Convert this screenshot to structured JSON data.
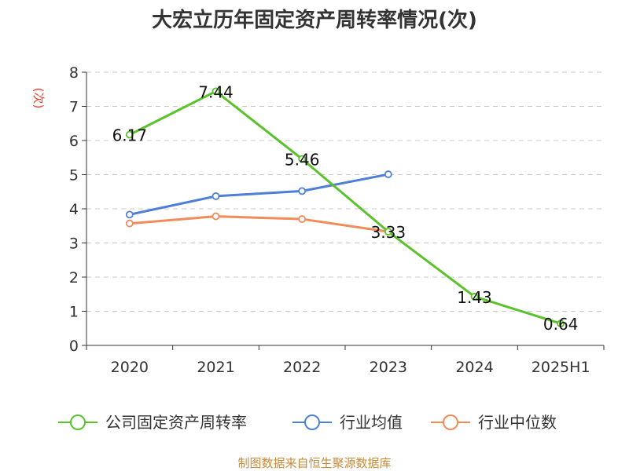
{
  "chart_data": {
    "type": "line",
    "title": "大宏立历年固定资产周转率情况(次)",
    "ylabel": "(次)",
    "xlabel": "",
    "categories": [
      "2020",
      "2021",
      "2022",
      "2023",
      "2024",
      "2025H1"
    ],
    "ylim": [
      0,
      8
    ],
    "yticks": [
      0,
      1,
      2,
      3,
      4,
      5,
      6,
      7,
      8
    ],
    "grid": true,
    "legend_position": "bottom",
    "series": [
      {
        "name": "公司固定资产周转率",
        "color": "#5ac22b",
        "values": [
          6.17,
          7.44,
          5.46,
          3.33,
          1.43,
          0.64
        ],
        "labels": [
          "6.17",
          "7.44",
          "5.46",
          "3.33",
          "1.43",
          "0.64"
        ]
      },
      {
        "name": "行业均值",
        "color": "#4f7fd8",
        "values": [
          3.83,
          4.37,
          4.52,
          5.01,
          null,
          null
        ]
      },
      {
        "name": "行业中位数",
        "color": "#f28b5a",
        "values": [
          3.57,
          3.78,
          3.7,
          3.33,
          null,
          null
        ]
      }
    ]
  },
  "source": "制图数据来自恒生聚源数据库"
}
